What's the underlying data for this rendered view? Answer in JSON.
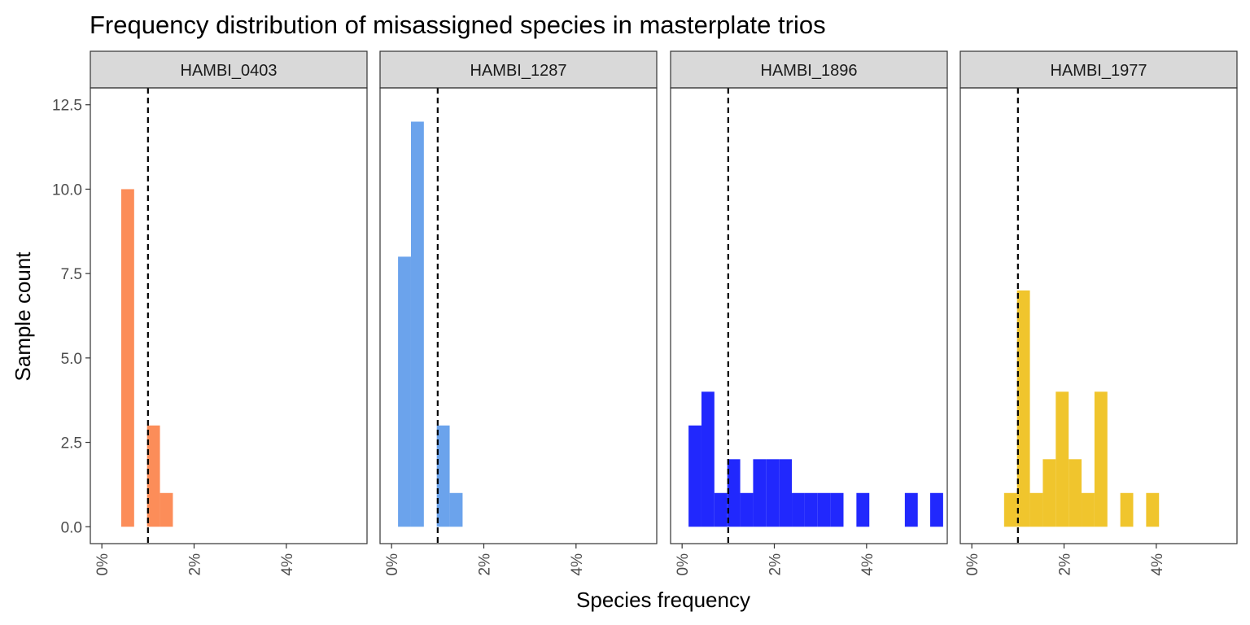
{
  "chart_data": {
    "type": "bar",
    "title": "Frequency distribution of misassigned species in masterplate trios",
    "xlabel": "Species frequency",
    "ylabel": "Sample count",
    "xlim": [
      -0.25,
      5.75
    ],
    "ylim": [
      -0.5,
      13
    ],
    "x_ticks": [
      0,
      2,
      4
    ],
    "x_tick_labels": [
      "0%",
      "2%",
      "4%"
    ],
    "y_ticks": [
      0,
      2.5,
      5,
      7.5,
      10,
      12.5
    ],
    "y_tick_labels": [
      "0.0",
      "2.5",
      "5.0",
      "7.5",
      "10.0",
      "12.5"
    ],
    "bin_width": 0.28,
    "reference_line_x": 1,
    "reference_line_style": "dashed",
    "grid": false,
    "panels": [
      {
        "name": "HAMBI_0403",
        "color": "#FC8D59",
        "bars": [
          {
            "x": 0.56,
            "count": 10
          },
          {
            "x": 1.12,
            "count": 3
          },
          {
            "x": 1.4,
            "count": 1
          }
        ]
      },
      {
        "name": "HAMBI_1287",
        "color": "#6BA3EC",
        "bars": [
          {
            "x": 0.28,
            "count": 8
          },
          {
            "x": 0.56,
            "count": 12
          },
          {
            "x": 1.12,
            "count": 3
          },
          {
            "x": 1.4,
            "count": 1
          }
        ]
      },
      {
        "name": "HAMBI_1896",
        "color": "#2128FD",
        "bars": [
          {
            "x": 0.28,
            "count": 3
          },
          {
            "x": 0.56,
            "count": 4
          },
          {
            "x": 0.84,
            "count": 1
          },
          {
            "x": 1.12,
            "count": 2
          },
          {
            "x": 1.4,
            "count": 1
          },
          {
            "x": 1.68,
            "count": 2
          },
          {
            "x": 1.96,
            "count": 2
          },
          {
            "x": 2.24,
            "count": 2
          },
          {
            "x": 2.52,
            "count": 1
          },
          {
            "x": 2.8,
            "count": 1
          },
          {
            "x": 3.08,
            "count": 1
          },
          {
            "x": 3.36,
            "count": 1
          },
          {
            "x": 3.92,
            "count": 1
          },
          {
            "x": 4.97,
            "count": 1
          },
          {
            "x": 5.52,
            "count": 1
          }
        ]
      },
      {
        "name": "HAMBI_1977",
        "color": "#F0C52D",
        "bars": [
          {
            "x": 0.84,
            "count": 1
          },
          {
            "x": 1.12,
            "count": 7
          },
          {
            "x": 1.4,
            "count": 1
          },
          {
            "x": 1.68,
            "count": 2
          },
          {
            "x": 1.96,
            "count": 4
          },
          {
            "x": 2.24,
            "count": 2
          },
          {
            "x": 2.52,
            "count": 1
          },
          {
            "x": 2.8,
            "count": 4
          },
          {
            "x": 3.36,
            "count": 1
          },
          {
            "x": 3.92,
            "count": 1
          }
        ]
      }
    ]
  }
}
